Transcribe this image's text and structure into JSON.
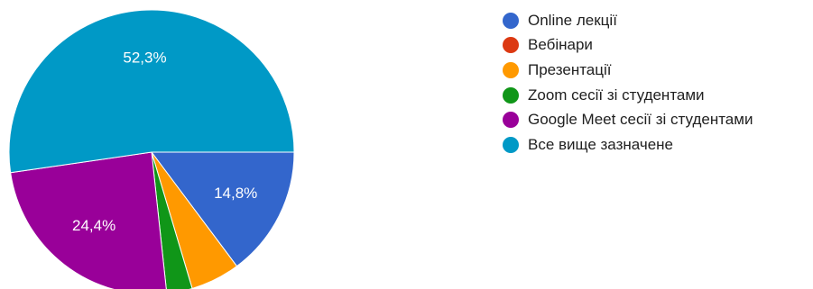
{
  "chart_data": {
    "type": "pie",
    "categories": [
      "Online лекції",
      "Вебінари",
      "Презентації",
      "Zoom сесії зі студентами",
      "Google Meet сесії зі студентами",
      "Все вище зазначене"
    ],
    "values": [
      14.8,
      0,
      5.6,
      2.9,
      24.4,
      52.3
    ],
    "data_labels": [
      "14,8%",
      "",
      "",
      "",
      "24,4%",
      "52,3%"
    ],
    "colors": [
      "#3366cc",
      "#dc3912",
      "#ff9900",
      "#109618",
      "#990099",
      "#0099c6"
    ],
    "legend_position": "right",
    "start_direction": "east",
    "order": "clockwise"
  }
}
